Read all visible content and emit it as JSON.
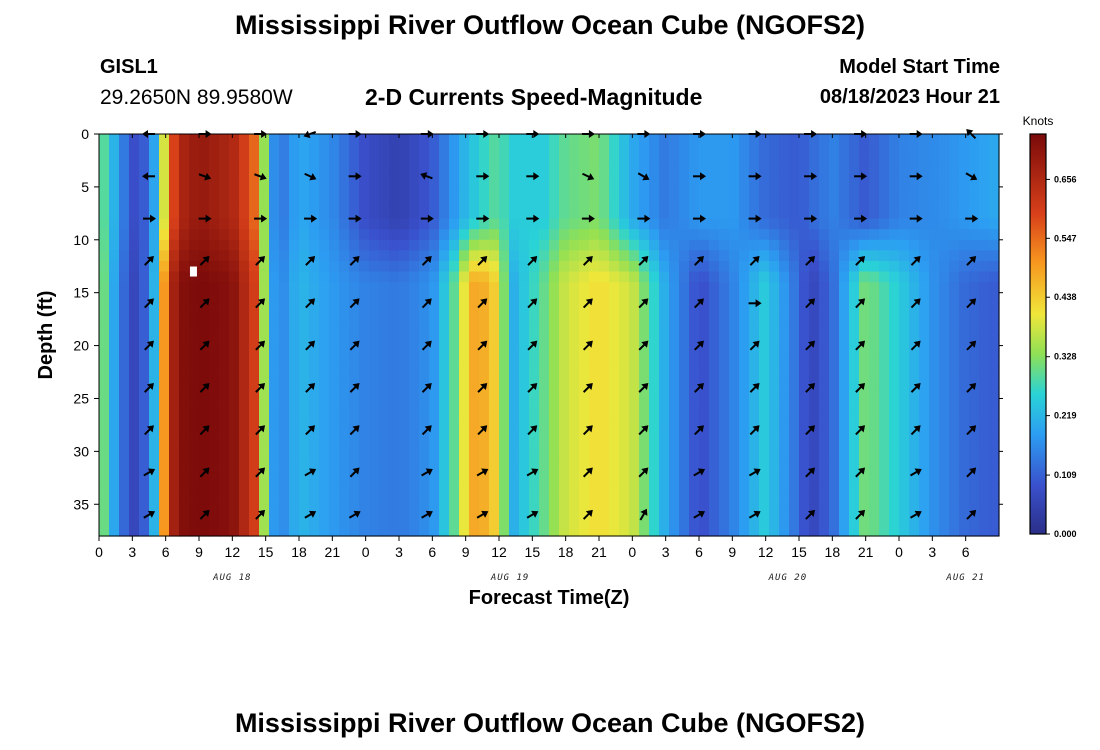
{
  "header": {
    "title": "Mississippi River Outflow Ocean Cube (NGOFS2)",
    "station_id": "GISL1",
    "station_coords": "29.2650N  89.9580W",
    "subtitle": "2-D Currents Speed-Magnitude",
    "model_start_label": "Model Start Time",
    "model_start_value": "08/18/2023 Hour 21"
  },
  "footer": {
    "title": "Mississippi River Outflow Ocean Cube (NGOFS2)"
  },
  "chart_data": {
    "type": "heatmap",
    "title": "2-D Currents Speed-Magnitude",
    "xlabel": "Forecast Time(Z)",
    "ylabel": "Depth (ft)",
    "x_range_hours": [
      0,
      81
    ],
    "x_tick_labels": [
      "0",
      "3",
      "6",
      "9",
      "12",
      "15",
      "18",
      "21",
      "0",
      "3",
      "6",
      "9",
      "12",
      "15",
      "18",
      "21",
      "0",
      "3",
      "6",
      "9",
      "12",
      "15",
      "18",
      "21",
      "0",
      "3",
      "6"
    ],
    "date_labels": [
      {
        "text": "AUG 18",
        "hour": 12
      },
      {
        "text": "AUG 19",
        "hour": 37
      },
      {
        "text": "AUG 20",
        "hour": 62
      },
      {
        "text": "AUG 21",
        "hour": 78
      }
    ],
    "y_range_ft": [
      0,
      38
    ],
    "y_inverted": true,
    "y_ticks": [
      0,
      5,
      10,
      15,
      20,
      25,
      30,
      35
    ],
    "colorbar": {
      "unit": "Knots",
      "ticks": [
        0.0,
        0.109,
        0.219,
        0.328,
        0.438,
        0.547,
        0.656
      ],
      "tick_labels": [
        "0.000",
        "0.109",
        "0.219",
        "0.328",
        "0.438",
        "0.547",
        "0.656"
      ],
      "range": [
        0,
        0.74
      ],
      "colormap": "jet"
    },
    "speed_profile_surface_hours": [
      0,
      1.5,
      3,
      4,
      5,
      6,
      7,
      9,
      12,
      14,
      15,
      16,
      18,
      21,
      24,
      27,
      30,
      32,
      33,
      34,
      36,
      37,
      40,
      42,
      45,
      48,
      51,
      54,
      57,
      60,
      63,
      64,
      66,
      69,
      72,
      75,
      78,
      81
    ],
    "speed_profile_surface_knots": [
      0.33,
      0.2,
      0.08,
      0.1,
      0.2,
      0.42,
      0.65,
      0.7,
      0.66,
      0.55,
      0.3,
      0.12,
      0.2,
      0.16,
      0.08,
      0.05,
      0.1,
      0.18,
      0.22,
      0.25,
      0.3,
      0.25,
      0.25,
      0.3,
      0.32,
      0.2,
      0.14,
      0.18,
      0.18,
      0.12,
      0.1,
      0.12,
      0.15,
      0.1,
      0.15,
      0.16,
      0.18,
      0.2
    ],
    "speed_profile_deep_hours": [
      0,
      1.5,
      3,
      4,
      5,
      6,
      7,
      9,
      12,
      14,
      15,
      16,
      18,
      21,
      24,
      27,
      30,
      32,
      33,
      34,
      36,
      37,
      40,
      42,
      45,
      48,
      51,
      54,
      57,
      60,
      63,
      64,
      66,
      69,
      72,
      75,
      78,
      81
    ],
    "speed_profile_deep_knots": [
      0.36,
      0.18,
      0.06,
      0.1,
      0.22,
      0.55,
      0.72,
      0.74,
      0.72,
      0.6,
      0.3,
      0.14,
      0.22,
      0.18,
      0.15,
      0.14,
      0.17,
      0.3,
      0.42,
      0.5,
      0.42,
      0.2,
      0.3,
      0.38,
      0.42,
      0.38,
      0.2,
      0.08,
      0.15,
      0.25,
      0.12,
      0.06,
      0.12,
      0.32,
      0.25,
      0.17,
      0.12,
      0.1
    ],
    "arrow_depths_ft": [
      0,
      4,
      8,
      12,
      16,
      20,
      24,
      28,
      32,
      36
    ],
    "arrow_hours": [
      4.5,
      9.5,
      14.5,
      19,
      23,
      29.5,
      34.5,
      39,
      44,
      49,
      54,
      59,
      64,
      68.5,
      73.5,
      78.5
    ],
    "arrow_directions_deg": [
      [
        180,
        0,
        0,
        160,
        0,
        0,
        0,
        0,
        0,
        0,
        0,
        0,
        0,
        0,
        0,
        225
      ],
      [
        180,
        20,
        20,
        25,
        0,
        200,
        0,
        0,
        25,
        30,
        0,
        0,
        0,
        0,
        0,
        30
      ],
      [
        0,
        0,
        0,
        0,
        0,
        0,
        0,
        0,
        0,
        0,
        0,
        0,
        0,
        0,
        0,
        0
      ],
      [
        315,
        315,
        315,
        315,
        315,
        315,
        315,
        315,
        315,
        315,
        315,
        315,
        315,
        315,
        315,
        315
      ],
      [
        315,
        315,
        315,
        315,
        315,
        315,
        315,
        315,
        315,
        315,
        315,
        0,
        315,
        315,
        315,
        315
      ],
      [
        315,
        315,
        315,
        315,
        315,
        315,
        315,
        315,
        315,
        315,
        315,
        315,
        315,
        315,
        315,
        315
      ],
      [
        315,
        315,
        315,
        315,
        315,
        315,
        315,
        315,
        315,
        315,
        315,
        315,
        315,
        315,
        315,
        315
      ],
      [
        315,
        315,
        315,
        315,
        315,
        315,
        315,
        315,
        315,
        315,
        315,
        315,
        315,
        315,
        315,
        315
      ],
      [
        330,
        315,
        315,
        330,
        315,
        330,
        330,
        330,
        315,
        315,
        330,
        330,
        315,
        315,
        330,
        315
      ],
      [
        330,
        315,
        315,
        330,
        330,
        330,
        330,
        330,
        315,
        300,
        330,
        330,
        315,
        315,
        330,
        315
      ]
    ],
    "missing_marker": {
      "hour": 8.5,
      "depth_ft": 13
    }
  }
}
